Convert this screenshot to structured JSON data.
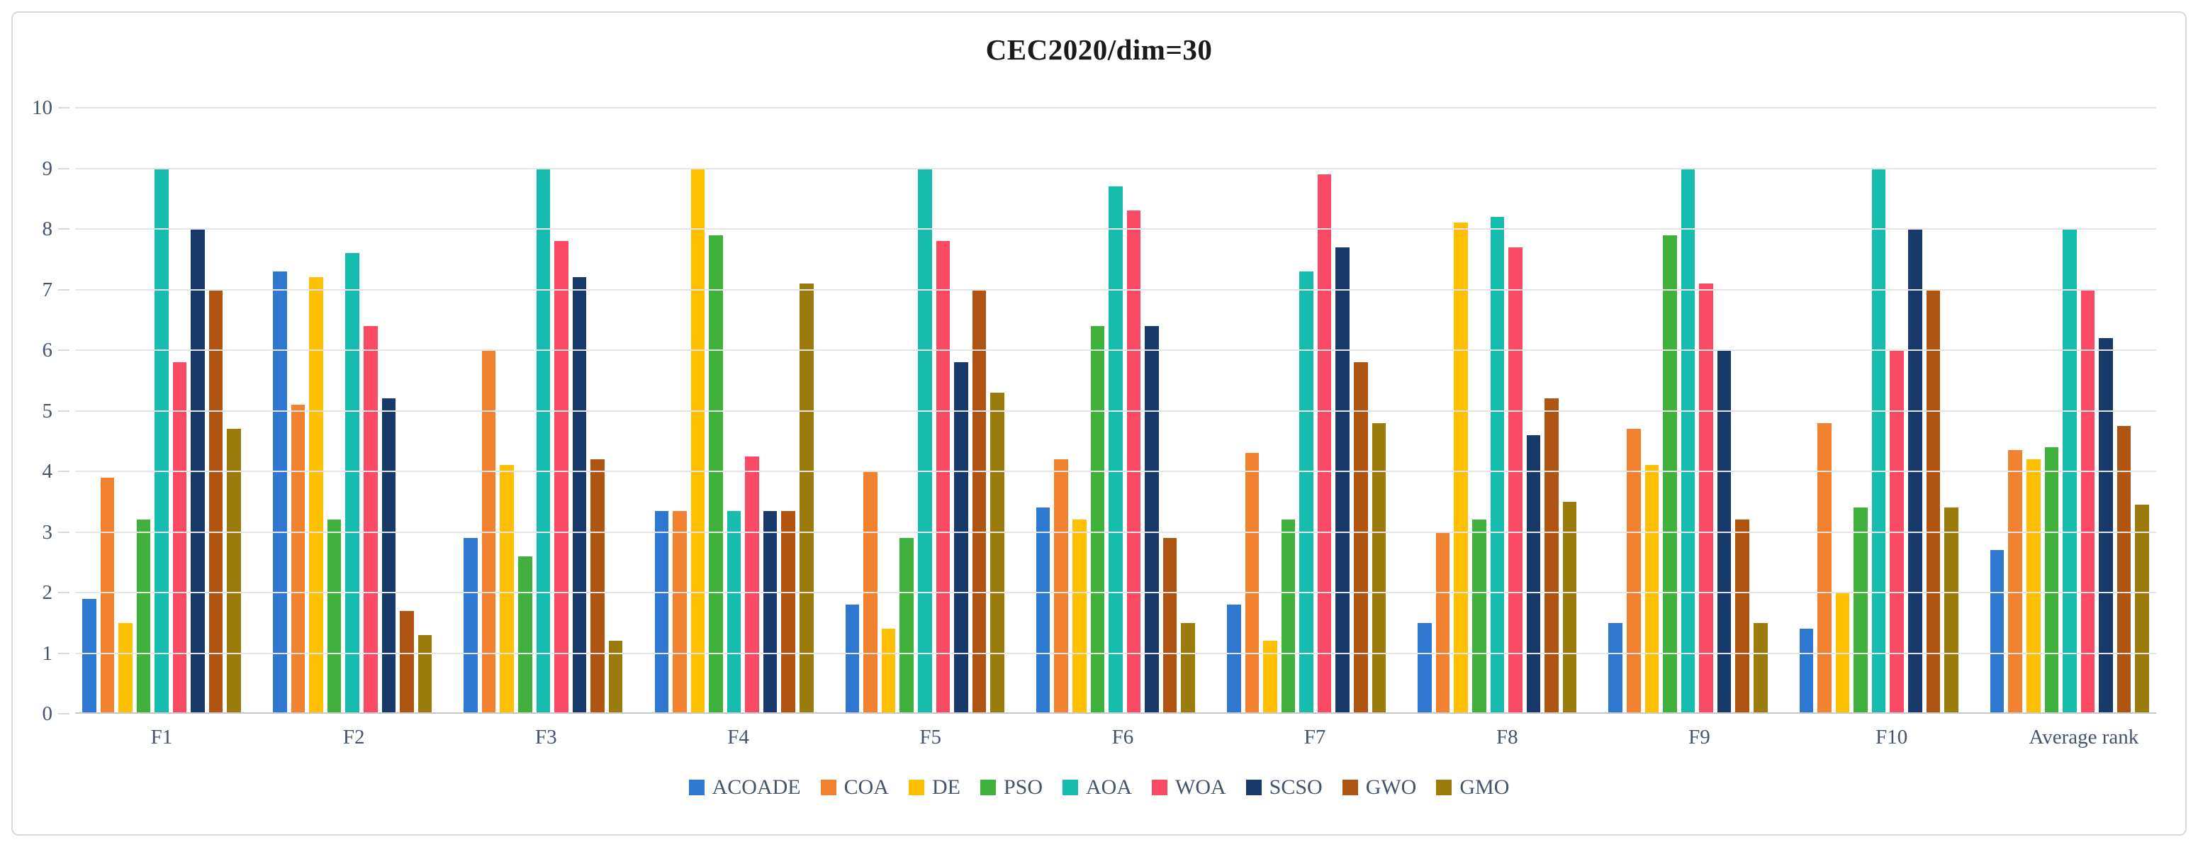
{
  "figure": {
    "title": "CEC2020/dim=30"
  },
  "colors": {
    "grid": "#e4e4e4",
    "baseline": "#c8c8c8",
    "axis_text": "#44546a",
    "title_text": "#1a1a1a",
    "frame_border": "#d9d9d9"
  },
  "chart_data": {
    "type": "bar",
    "title": "CEC2020/dim=30",
    "xlabel": "",
    "ylabel": "",
    "ylim": [
      0,
      10
    ],
    "yticks": [
      0,
      1,
      2,
      3,
      4,
      5,
      6,
      7,
      8,
      9,
      10
    ],
    "grid": true,
    "legend_position": "bottom",
    "categories": [
      "F1",
      "F2",
      "F3",
      "F4",
      "F5",
      "F6",
      "F7",
      "F8",
      "F9",
      "F10",
      "Average rank"
    ],
    "series": [
      {
        "name": "ACOADE",
        "color": "#2e78d2",
        "values": [
          1.9,
          7.3,
          2.9,
          3.35,
          1.8,
          3.4,
          1.8,
          1.5,
          1.5,
          1.4,
          2.7
        ]
      },
      {
        "name": "COA",
        "color": "#f28130",
        "values": [
          3.9,
          5.1,
          6.0,
          3.35,
          4.0,
          4.2,
          4.3,
          3.0,
          4.7,
          4.8,
          4.35
        ]
      },
      {
        "name": "DE",
        "color": "#ffc002",
        "values": [
          1.5,
          7.2,
          4.1,
          9.0,
          1.4,
          3.2,
          1.2,
          8.1,
          4.1,
          2.0,
          4.2
        ]
      },
      {
        "name": "PSO",
        "color": "#3fb13c",
        "values": [
          3.2,
          3.2,
          2.6,
          7.9,
          2.9,
          6.4,
          3.2,
          3.2,
          7.9,
          3.4,
          4.4
        ]
      },
      {
        "name": "AOA",
        "color": "#16bcae",
        "values": [
          9.0,
          7.6,
          9.0,
          3.35,
          9.0,
          8.7,
          7.3,
          8.2,
          9.0,
          9.0,
          8.0
        ]
      },
      {
        "name": "WOA",
        "color": "#fa4a63",
        "values": [
          5.8,
          6.4,
          7.8,
          4.25,
          7.8,
          8.3,
          8.9,
          7.7,
          7.1,
          6.0,
          7.0
        ]
      },
      {
        "name": "SCSO",
        "color": "#173a6b",
        "values": [
          8.0,
          5.2,
          7.2,
          3.35,
          5.8,
          6.4,
          7.7,
          4.6,
          6.0,
          8.0,
          6.2
        ]
      },
      {
        "name": "GWO",
        "color": "#b05511",
        "values": [
          7.0,
          1.7,
          4.2,
          3.35,
          7.0,
          2.9,
          5.8,
          5.2,
          3.2,
          7.0,
          4.75
        ]
      },
      {
        "name": "GMO",
        "color": "#9a7b0c",
        "values": [
          4.7,
          1.3,
          1.2,
          7.1,
          5.3,
          1.5,
          4.8,
          3.5,
          1.5,
          3.4,
          3.45
        ]
      }
    ]
  }
}
